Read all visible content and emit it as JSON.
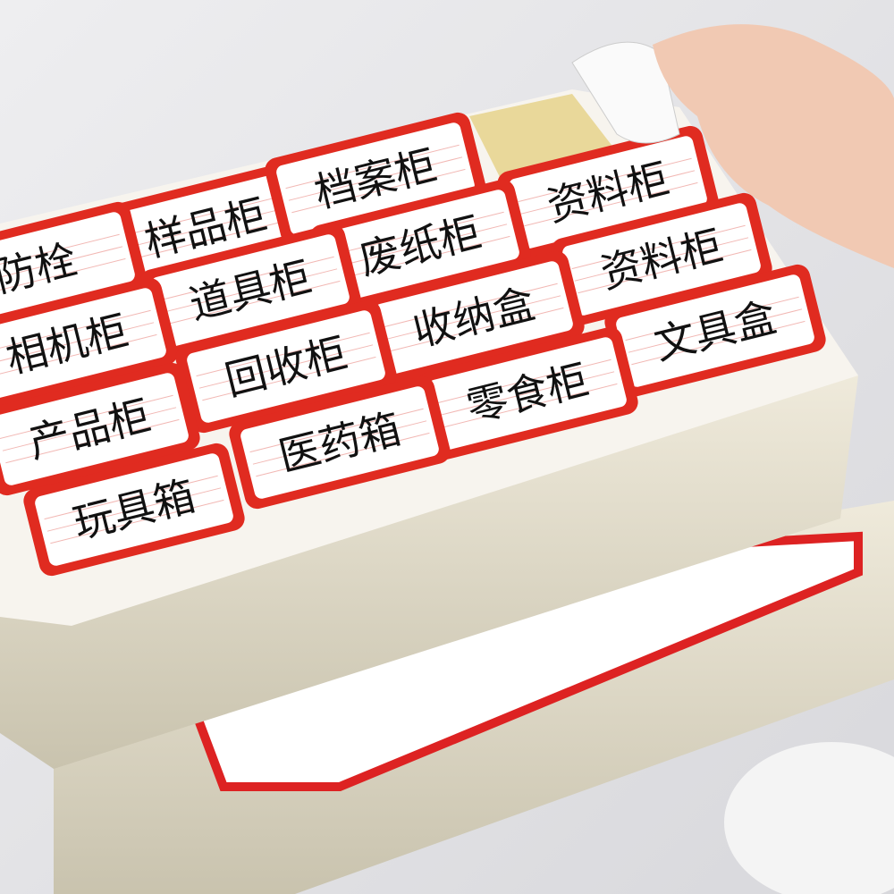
{
  "labels": [
    "样品柜",
    "档案柜",
    "资料柜",
    "防栓",
    "废纸柜",
    "资料柜",
    "道具柜",
    "收纳盒",
    "相机柜",
    "文具盒",
    "回收柜",
    "产品柜",
    "零食柜",
    "医药箱",
    "玩具箱"
  ]
}
